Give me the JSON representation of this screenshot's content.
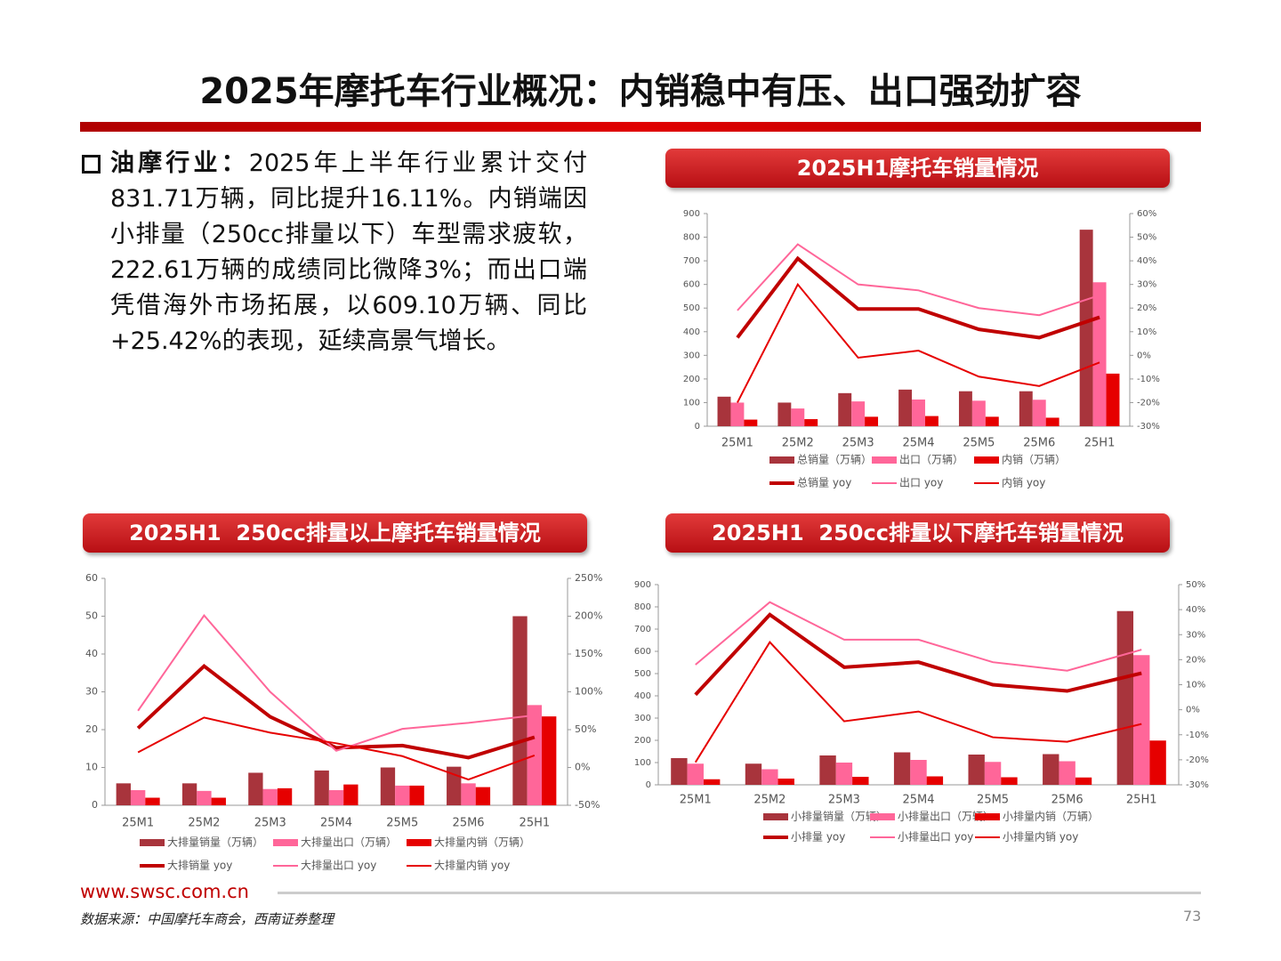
{
  "header": {
    "title": "2025年摩托车行业概况：内销稳中有压、出口强劲扩容"
  },
  "body": {
    "label": "油摩行业：",
    "text": "2025年上半年行业累计交付831.71万辆，同比提升16.11%。内销端因小排量（250cc排量以下）车型需求疲软，222.61万辆的成绩同比微降3%；而出口端凭借海外市场拓展，以609.10万辆、同比+25.42%的表现，延续高景气增长。"
  },
  "chart_data": [
    {
      "type": "bar",
      "title": "2025H1摩托车销量情况",
      "legend": "bottom",
      "categories": [
        "25M1",
        "25M2",
        "25M3",
        "25M4",
        "25M5",
        "25M6",
        "25H1"
      ],
      "ylim": [
        0,
        900
      ],
      "yticks": [
        0,
        100,
        200,
        300,
        400,
        500,
        600,
        700,
        800,
        900
      ],
      "y2lim": [
        -30,
        60
      ],
      "y2ticks": [
        {
          "value": -30,
          "label": "-30%"
        },
        {
          "value": -20,
          "label": "-20%"
        },
        {
          "value": -10,
          "label": "-10%"
        },
        {
          "value": 0,
          "label": "0%"
        },
        {
          "value": 10,
          "label": "10%"
        },
        {
          "value": 20,
          "label": "20%"
        },
        {
          "value": 30,
          "label": "30%"
        },
        {
          "value": 40,
          "label": "40%"
        },
        {
          "value": 50,
          "label": "50%"
        },
        {
          "value": 60,
          "label": "60%"
        }
      ],
      "series": [
        {
          "name": "总销量（万辆）",
          "type": "bar",
          "color": "#a8343c",
          "values": [
            125,
            100,
            140,
            155,
            148,
            148,
            831.71
          ]
        },
        {
          "name": "出口（万辆）",
          "type": "bar",
          "color": "#ff6699",
          "values": [
            100,
            75,
            105,
            113,
            108,
            112,
            609.1
          ]
        },
        {
          "name": "内销（万辆）",
          "type": "bar",
          "color": "#e60000",
          "values": [
            28,
            30,
            40,
            43,
            40,
            36,
            222.61
          ]
        },
        {
          "name": "总销量 yoy",
          "type": "line",
          "axis": "y2",
          "color": "#c00000",
          "values": [
            7.5,
            41,
            19.6,
            19.6,
            11,
            7.5,
            16.11
          ]
        },
        {
          "name": "出口 yoy",
          "type": "line",
          "axis": "y2",
          "color": "#ff6699",
          "values": [
            19,
            47,
            30,
            27.5,
            20,
            17,
            25.42
          ]
        },
        {
          "name": "内销 yoy",
          "type": "line",
          "axis": "y2",
          "color": "#e60000",
          "values": [
            -20,
            30,
            -1,
            2,
            -9,
            -13,
            -3
          ]
        }
      ]
    },
    {
      "type": "bar",
      "title": "2025H1  250cc排量以上摩托车销量情况",
      "legend": "bottom",
      "categories": [
        "25M1",
        "25M2",
        "25M3",
        "25M4",
        "25M5",
        "25M6",
        "25H1"
      ],
      "ylim": [
        0,
        60
      ],
      "yticks": [
        0,
        10,
        20,
        30,
        40,
        50,
        60
      ],
      "y2lim": [
        -50,
        250
      ],
      "y2ticks": [
        {
          "value": -50,
          "label": "-50%"
        },
        {
          "value": 0,
          "label": "0%"
        },
        {
          "value": 50,
          "label": "50%"
        },
        {
          "value": 100,
          "label": "100%"
        },
        {
          "value": 150,
          "label": "150%"
        },
        {
          "value": 200,
          "label": "200%"
        },
        {
          "value": 250,
          "label": "250%"
        }
      ],
      "series": [
        {
          "name": "大排量销量（万辆）",
          "type": "bar",
          "color": "#a8343c",
          "values": [
            5.8,
            5.8,
            8.6,
            9.2,
            10,
            10.2,
            50
          ]
        },
        {
          "name": "大排量出口（万辆）",
          "type": "bar",
          "color": "#ff6699",
          "values": [
            4,
            3.8,
            4.3,
            4,
            5.2,
            5.8,
            26.5
          ]
        },
        {
          "name": "大排量内销（万辆）",
          "type": "bar",
          "color": "#e60000",
          "values": [
            2,
            2,
            4.5,
            5.5,
            5.2,
            4.8,
            23.5
          ]
        },
        {
          "name": "大排销量 yoy",
          "type": "line",
          "axis": "y2",
          "color": "#c00000",
          "values": [
            52,
            134,
            67,
            26,
            29,
            13,
            40
          ]
        },
        {
          "name": "大排量出口 yoy",
          "type": "line",
          "axis": "y2",
          "color": "#ff6699",
          "values": [
            75,
            201,
            100,
            22,
            51,
            59,
            69
          ]
        },
        {
          "name": "大排量内销 yoy",
          "type": "line",
          "axis": "y2",
          "color": "#e60000",
          "values": [
            20,
            66,
            46,
            32,
            15,
            -16,
            16
          ]
        }
      ]
    },
    {
      "type": "bar",
      "title": "2025H1  250cc排量以下摩托车销量情况",
      "legend": "bottom",
      "categories": [
        "25M1",
        "25M2",
        "25M3",
        "25M4",
        "25M5",
        "25M6",
        "25H1"
      ],
      "ylim": [
        0,
        900
      ],
      "yticks": [
        0,
        100,
        200,
        300,
        400,
        500,
        600,
        700,
        800,
        900
      ],
      "y2lim": [
        -30,
        50
      ],
      "y2ticks": [
        {
          "value": -30,
          "label": "-30%"
        },
        {
          "value": -20,
          "label": "-20%"
        },
        {
          "value": -10,
          "label": "-10%"
        },
        {
          "value": 0,
          "label": "0%"
        },
        {
          "value": 10,
          "label": "10%"
        },
        {
          "value": 20,
          "label": "20%"
        },
        {
          "value": 30,
          "label": "30%"
        },
        {
          "value": 40,
          "label": "40%"
        },
        {
          "value": 50,
          "label": "50%"
        }
      ],
      "series": [
        {
          "name": "小排量销量（万辆）",
          "type": "bar",
          "color": "#a8343c",
          "values": [
            120,
            95,
            132,
            146,
            136,
            138,
            781
          ]
        },
        {
          "name": "小排量出口（万辆）",
          "type": "bar",
          "color": "#ff6699",
          "values": [
            95,
            70,
            100,
            112,
            103,
            106,
            583
          ]
        },
        {
          "name": "小排量内销（万辆）",
          "type": "bar",
          "color": "#e60000",
          "values": [
            25,
            28,
            36,
            38,
            34,
            33,
            199
          ]
        },
        {
          "name": "小排量 yoy",
          "type": "line",
          "axis": "y2",
          "color": "#c00000",
          "values": [
            6,
            38,
            17,
            19,
            10,
            7.5,
            14.6
          ]
        },
        {
          "name": "小排量出口 yoy",
          "type": "line",
          "axis": "y2",
          "color": "#ff6699",
          "values": [
            18,
            43,
            28,
            28,
            19,
            15.6,
            24
          ]
        },
        {
          "name": "小排量内销 yoy",
          "type": "line",
          "axis": "y2",
          "color": "#e60000",
          "values": [
            -21,
            27,
            -4.6,
            -0.7,
            -11,
            -12.8,
            -5.7
          ]
        }
      ]
    }
  ],
  "footer": {
    "site": "www.swsc.com.cn",
    "source": "数据来源：中国摩托车商会，西南证券整理",
    "page": "73"
  }
}
